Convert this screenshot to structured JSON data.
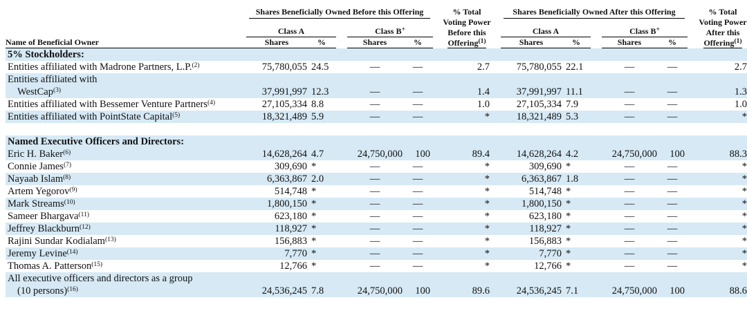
{
  "header": {
    "name_col": "Name of Beneficial Owner",
    "before_group": "Shares Beneficially Owned Before this Offering",
    "after_group": "Shares Beneficially Owned After this Offering",
    "class_a": "Class A",
    "class_b": "Class B",
    "class_b_sup": "+",
    "shares": "Shares",
    "pct": "%",
    "vp_before_l1": "% Total",
    "vp_before_l2": "Voting Power",
    "vp_before_l3": "Before this",
    "vp_before_l4": "Offering",
    "vp_before_sup": "(1)",
    "vp_after_l1": "% Total",
    "vp_after_l2": "Voting Power",
    "vp_after_l3": "After this",
    "vp_after_l4": "Offering",
    "vp_after_sup": "(1)"
  },
  "sections": {
    "stockholders": "5% Stockholders:",
    "officers": "Named Executive Officers and Directors:"
  },
  "rows": [
    {
      "name": "Entities affiliated with Madrone Partners, L.P.",
      "sup": "(2)",
      "a_shares": "75,780,055",
      "a_pct": "24.5",
      "b_shares": "—",
      "b_pct": "—",
      "vp_before": "2.7",
      "a_shares_after": "75,780,055",
      "a_pct_after": "22.1",
      "b_shares_after": "—",
      "b_pct_after": "—",
      "vp_after": "2.7"
    },
    {
      "name_l1": "Entities affiliated with",
      "name_l2": "WestCap",
      "sup": "(3)",
      "a_shares": "37,991,997",
      "a_pct": "12.3",
      "b_shares": "—",
      "b_pct": "—",
      "vp_before": "1.4",
      "a_shares_after": "37,991,997",
      "a_pct_after": "11.1",
      "b_shares_after": "—",
      "b_pct_after": "—",
      "vp_after": "1.3"
    },
    {
      "name": "Entities affiliated with Bessemer Venture Partners",
      "sup": "(4)",
      "a_shares": "27,105,334",
      "a_pct": "8.8",
      "b_shares": "—",
      "b_pct": "—",
      "vp_before": "1.0",
      "a_shares_after": "27,105,334",
      "a_pct_after": "7.9",
      "b_shares_after": "—",
      "b_pct_after": "—",
      "vp_after": "1.0"
    },
    {
      "name": "Entities affiliated with PointState Capital",
      "sup": "(5)",
      "a_shares": "18,321,489",
      "a_pct": "5.9",
      "b_shares": "—",
      "b_pct": "—",
      "vp_before": "*",
      "a_shares_after": "18,321,489",
      "a_pct_after": "5.3",
      "b_shares_after": "—",
      "b_pct_after": "—",
      "vp_after": "*"
    },
    {
      "name": "Eric H. Baker",
      "sup": "(6)",
      "a_shares": "14,628,264",
      "a_pct": "4.7",
      "b_shares": "24,750,000",
      "b_pct": "100",
      "vp_before": "89.4",
      "a_shares_after": "14,628,264",
      "a_pct_after": "4.2",
      "b_shares_after": "24,750,000",
      "b_pct_after": "100",
      "vp_after": "88.3"
    },
    {
      "name": "Connie James",
      "sup": "(7)",
      "a_shares": "309,690",
      "a_pct": "*",
      "b_shares": "—",
      "b_pct": "—",
      "vp_before": "*",
      "a_shares_after": "309,690",
      "a_pct_after": "*",
      "b_shares_after": "—",
      "b_pct_after": "—",
      "vp_after": "*"
    },
    {
      "name": "Nayaab Islam",
      "sup": "(8)",
      "a_shares": "6,363,867",
      "a_pct": "2.0",
      "b_shares": "—",
      "b_pct": "—",
      "vp_before": "*",
      "a_shares_after": "6,363,867",
      "a_pct_after": "1.8",
      "b_shares_after": "—",
      "b_pct_after": "—",
      "vp_after": "*"
    },
    {
      "name": "Artem Yegorov",
      "sup": "(9)",
      "a_shares": "514,748",
      "a_pct": "*",
      "b_shares": "—",
      "b_pct": "—",
      "vp_before": "*",
      "a_shares_after": "514,748",
      "a_pct_after": "*",
      "b_shares_after": "—",
      "b_pct_after": "—",
      "vp_after": "*"
    },
    {
      "name": "Mark Streams",
      "sup": "(10)",
      "a_shares": "1,800,150",
      "a_pct": "*",
      "b_shares": "—",
      "b_pct": "—",
      "vp_before": "*",
      "a_shares_after": "1,800,150",
      "a_pct_after": "*",
      "b_shares_after": "—",
      "b_pct_after": "—",
      "vp_after": "*"
    },
    {
      "name": "Sameer Bhargava",
      "sup": "(11)",
      "a_shares": "623,180",
      "a_pct": "*",
      "b_shares": "—",
      "b_pct": "—",
      "vp_before": "*",
      "a_shares_after": "623,180",
      "a_pct_after": "*",
      "b_shares_after": "—",
      "b_pct_after": "—",
      "vp_after": "*"
    },
    {
      "name": "Jeffrey Blackburn",
      "sup": "(12)",
      "a_shares": "118,927",
      "a_pct": "*",
      "b_shares": "—",
      "b_pct": "—",
      "vp_before": "*",
      "a_shares_after": "118,927",
      "a_pct_after": "*",
      "b_shares_after": "—",
      "b_pct_after": "—",
      "vp_after": "*"
    },
    {
      "name": "Rajini Sundar Kodialam",
      "sup": "(13)",
      "a_shares": "156,883",
      "a_pct": "*",
      "b_shares": "—",
      "b_pct": "—",
      "vp_before": "*",
      "a_shares_after": "156,883",
      "a_pct_after": "*",
      "b_shares_after": "—",
      "b_pct_after": "—",
      "vp_after": "*"
    },
    {
      "name": "Jeremy Levine",
      "sup": "(14)",
      "a_shares": "7,770",
      "a_pct": "*",
      "b_shares": "—",
      "b_pct": "—",
      "vp_before": "*",
      "a_shares_after": "7,770",
      "a_pct_after": "*",
      "b_shares_after": "—",
      "b_pct_after": "—",
      "vp_after": "*"
    },
    {
      "name": "Thomas A. Patterson",
      "sup": "(15)",
      "a_shares": "12,766",
      "a_pct": "*",
      "b_shares": "—",
      "b_pct": "—",
      "vp_before": "*",
      "a_shares_after": "12,766",
      "a_pct_after": "*",
      "b_shares_after": "—",
      "b_pct_after": "—",
      "vp_after": "*"
    },
    {
      "name_l1": "All executive officers and directors as a group",
      "name_l2": "(10 persons)",
      "sup": "(16)",
      "a_shares": "24,536,245",
      "a_pct": "7.8",
      "b_shares": "24,750,000",
      "b_pct": "100",
      "vp_before": "89.6",
      "a_shares_after": "24,536,245",
      "a_pct_after": "7.1",
      "b_shares_after": "24,750,000",
      "b_pct_after": "100",
      "vp_after": "88.6"
    }
  ]
}
